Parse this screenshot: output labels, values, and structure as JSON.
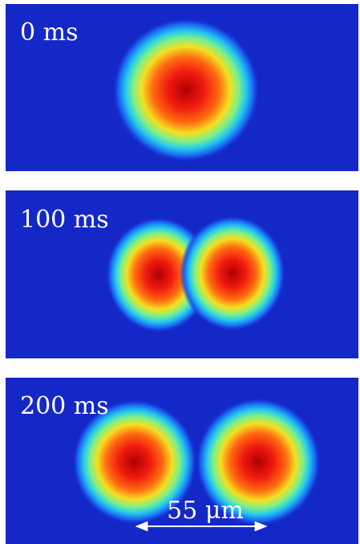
{
  "panels": [
    {
      "label": "0 ms"
    },
    {
      "label": "100 ms"
    },
    {
      "label": "200 ms"
    }
  ],
  "scale_bar": {
    "label": "55 μm"
  }
}
